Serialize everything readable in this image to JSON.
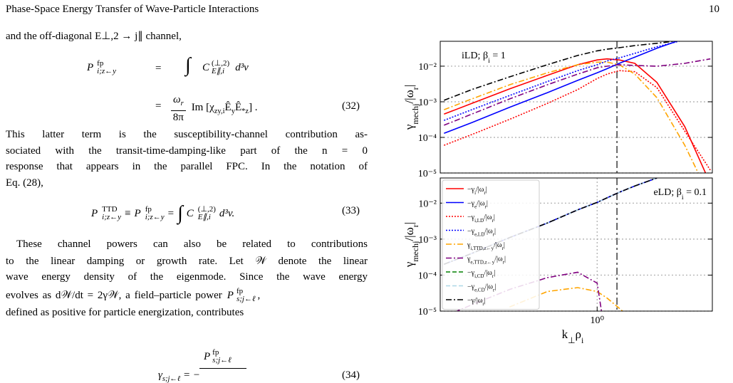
{
  "header": {
    "title": "Phase-Space Energy Transfer of Wave-Particle Interactions",
    "page": "10"
  },
  "text": {
    "p0": "and the off-diagonal E⊥,2 → j∥ channel,",
    "eq32": {
      "lhs": [
        "P",
        "fp",
        "i;z←y"
      ],
      "rel": [
        "=",
        "="
      ],
      "int": "∫",
      "integrand": [
        "C",
        "(⊥,2)",
        "E∥,i",
        "d³v"
      ],
      "frac": [
        "ωr",
        "8π"
      ],
      "im": "Im [χzy,iÊyÊ*z] .",
      "number": "(32)"
    },
    "p1": [
      "This latter term is the susceptibility-channel contribution as-",
      "sociated with the transit-time-damping-like part of the n = 0",
      "response that appears in the parallel FPC. In the notation of",
      "Eq. (28),"
    ],
    "eq33": {
      "lhs": [
        "P",
        "TTD",
        "i;z←y"
      ],
      "rel": [
        "≡",
        "="
      ],
      "mid": [
        "P",
        "fp",
        "i;z←y"
      ],
      "int": "∫",
      "integrand": [
        "C",
        "(⊥,2)",
        "E∥,i",
        "d³v."
      ],
      "number": "(33)"
    },
    "p2": [
      "These channel powers can also be related to contributions",
      "to the linear damping or growth rate. Let 𝒲 denote the linear",
      "wave energy density of the eigenmode. Since the wave energy",
      "evolves as d𝒲/dt = 2γ𝒲, a field–particle power",
      "defined as positive for particle energization, contributes"
    ],
    "p2_power": [
      "P",
      "fp",
      "s;j←ℓ",
      ","
    ],
    "eq34": {
      "num": [
        "P",
        "fp",
        "s;j←ℓ"
      ],
      "lhs": "γs;j←ℓ = −",
      "number": "(34)"
    }
  },
  "chart_data": [
    {
      "type": "line",
      "xlog": true,
      "ylog": true,
      "xlim": [
        0.056,
        8.3
      ],
      "ylim": [
        1e-05,
        0.05
      ],
      "yticks": [
        {
          "value": 0.01,
          "label": "10⁻²"
        },
        {
          "value": 0.001,
          "label": "10⁻³"
        },
        {
          "value": 0.0001,
          "label": "10⁻⁴"
        },
        {
          "value": 1e-05,
          "label": "10⁻⁵"
        }
      ],
      "grid": true,
      "ylabel": "γmechj/|ωr|",
      "annotation": "iLD; βi = 1",
      "vline": 1.44,
      "x": [
        0.06,
        0.1,
        0.2,
        0.4,
        0.7,
        1,
        1.2,
        1.5,
        2,
        3,
        5,
        8
      ],
      "series": [
        {
          "color": "#ff0000",
          "style": "solid",
          "values": [
            0.00045,
            0.0009,
            0.0023,
            0.0055,
            0.011,
            0.015,
            0.016,
            0.015,
            0.012,
            0.0035,
            0.0002,
            5e-06
          ]
        },
        {
          "color": "#0000ff",
          "style": "solid",
          "values": [
            0.00013,
            0.00026,
            0.0007,
            0.0018,
            0.004,
            0.0065,
            0.0085,
            0.012,
            0.018,
            0.032,
            0.06,
            null
          ]
        },
        {
          "color": "#ff0000",
          "style": "dotted",
          "values": [
            6e-05,
            0.00012,
            0.00032,
            0.0009,
            0.0022,
            0.0045,
            0.006,
            0.0075,
            0.007,
            0.0025,
            0.00015,
            1.2e-05
          ]
        },
        {
          "color": "#0000ff",
          "style": "dotted",
          "values": [
            0.0003,
            0.0006,
            0.0015,
            0.0037,
            0.0075,
            0.011,
            0.014,
            0.017,
            0.023,
            0.035,
            0.055,
            null
          ]
        },
        {
          "color": "#ffa500",
          "style": "dashdot",
          "values": [
            0.0006,
            0.0012,
            0.003,
            0.0065,
            0.011,
            0.013,
            0.013,
            0.011,
            0.006,
            0.0013,
            6e-05,
            2e-06
          ]
        },
        {
          "color": "#800080",
          "style": "dashdot",
          "values": [
            0.00022,
            0.00045,
            0.0012,
            0.003,
            0.006,
            0.009,
            0.01,
            0.011,
            0.0105,
            0.01,
            0.012,
            0.016
          ]
        },
        {
          "color": "#000000",
          "style": "dashdot",
          "values": [
            0.0011,
            0.0022,
            0.005,
            0.011,
            0.02,
            0.027,
            0.03,
            0.033,
            0.038,
            0.044,
            0.055,
            null
          ]
        }
      ]
    },
    {
      "type": "line",
      "xlog": true,
      "ylog": true,
      "xlim": [
        0.056,
        8.3
      ],
      "ylim": [
        1e-05,
        0.05
      ],
      "xticks": [
        {
          "value": 1,
          "label": "10⁰"
        }
      ],
      "yticks": [
        {
          "value": 0.01,
          "label": "10⁻²"
        },
        {
          "value": 0.001,
          "label": "10⁻³"
        },
        {
          "value": 0.0001,
          "label": "10⁻⁴"
        },
        {
          "value": 1e-05,
          "label": "10⁻⁵"
        }
      ],
      "grid": true,
      "ylabel": "γmechj/|ωr|",
      "xlabel": "k⊥ρi",
      "annotation": "eLD; βi = 0.1",
      "vline": 1.44,
      "legend": "upper left",
      "x": [
        0.06,
        0.1,
        0.2,
        0.4,
        0.7,
        1,
        1.2,
        1.5,
        2,
        3,
        5,
        8
      ],
      "series": [
        {
          "name": "−γi/|ωr|",
          "color": "#ff0000",
          "style": "solid",
          "values": [
            null,
            null,
            null,
            null,
            null,
            null,
            null,
            null,
            null,
            null,
            null,
            null
          ]
        },
        {
          "name": "−γe/|ωr|",
          "color": "#0000ff",
          "style": "solid",
          "values": [
            0.0002,
            0.0004,
            0.0011,
            0.0028,
            0.0065,
            0.0105,
            0.014,
            0.02,
            0.03,
            0.05,
            null,
            null
          ]
        },
        {
          "name": "−γi,LD/|ωr|",
          "color": "#ff0000",
          "style": "dotted",
          "values": [
            null,
            null,
            null,
            null,
            null,
            null,
            null,
            null,
            null,
            null,
            null,
            null
          ]
        },
        {
          "name": "−γe,LD/|ωr|",
          "color": "#0000ff",
          "style": "dotted",
          "values": [
            0.0002,
            0.0004,
            0.0011,
            0.0028,
            0.0065,
            0.0105,
            0.014,
            0.02,
            0.03,
            0.05,
            null,
            null
          ]
        },
        {
          "name": "γi,TTD,z←y/|ωr|",
          "color": "#ffa500",
          "style": "dashdot",
          "values": [
            null,
            null,
            1.3e-05,
            3.5e-05,
            4.5e-05,
            3.5e-05,
            2.3e-05,
            1.2e-05,
            5e-06,
            null,
            null,
            null
          ]
        },
        {
          "name": "γe,TTD,z←y/|ωr|",
          "color": "#800080",
          "style": "dashdot",
          "values": [
            7e-06,
            1.5e-05,
            4e-05,
            8.5e-05,
            0.00012,
            6e-05,
            1e-06,
            null,
            null,
            null,
            null,
            null
          ]
        },
        {
          "name": "−γi,CD/|ωr|",
          "color": "#008000",
          "style": "dashed",
          "values": [
            null,
            null,
            null,
            null,
            null,
            null,
            null,
            null,
            null,
            null,
            null,
            null
          ]
        },
        {
          "name": "−γe,CD/|ωr|",
          "color": "#add8e6",
          "style": "dashed",
          "values": [
            0.0002,
            0.0004,
            0.0011,
            0.0028,
            0.0065,
            0.0105,
            0.014,
            0.02,
            0.03,
            0.05,
            null,
            null
          ]
        },
        {
          "name": "−γ/|ωr|",
          "color": "#000000",
          "style": "dashdot",
          "values": [
            0.0002,
            0.0004,
            0.0011,
            0.0028,
            0.0065,
            0.0105,
            0.014,
            0.02,
            0.03,
            0.05,
            null,
            null
          ]
        }
      ]
    }
  ]
}
